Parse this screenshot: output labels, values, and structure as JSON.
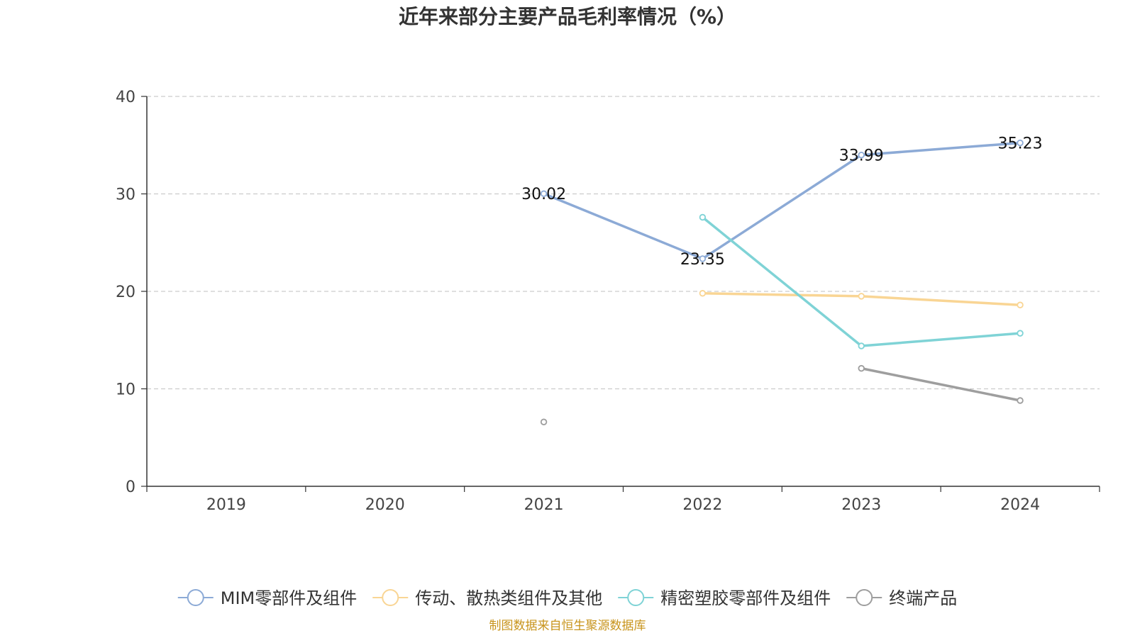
{
  "chart_data": {
    "type": "line",
    "title": "近年来部分主要产品毛利率情况（%）",
    "categories": [
      "2019",
      "2020",
      "2021",
      "2022",
      "2023",
      "2024"
    ],
    "ylim": [
      0,
      40
    ],
    "yticks": [
      0,
      10,
      20,
      30,
      40
    ],
    "grid": true,
    "legend_position": "bottom",
    "series": [
      {
        "name": "MIM零部件及组件",
        "color": "#8caad6",
        "values": [
          null,
          null,
          30.02,
          23.35,
          33.99,
          35.23
        ],
        "labels": [
          null,
          null,
          "30.02",
          "23.35",
          "33.99",
          "35.23"
        ]
      },
      {
        "name": "传动、散热类组件及其他",
        "color": "#f9d594",
        "values": [
          null,
          null,
          null,
          19.8,
          19.5,
          18.6
        ],
        "labels": [
          null,
          null,
          null,
          null,
          null,
          null
        ]
      },
      {
        "name": "精密塑胶零部件及组件",
        "color": "#7fd3d6",
        "values": [
          null,
          null,
          null,
          27.6,
          14.4,
          15.7
        ],
        "labels": [
          null,
          null,
          null,
          null,
          null,
          null
        ]
      },
      {
        "name": "终端产品",
        "color": "#9e9e9e",
        "values": [
          null,
          null,
          6.6,
          null,
          12.1,
          8.8
        ],
        "labels": [
          null,
          null,
          null,
          null,
          null,
          null
        ]
      }
    ],
    "source": "制图数据来自恒生聚源数据库"
  }
}
